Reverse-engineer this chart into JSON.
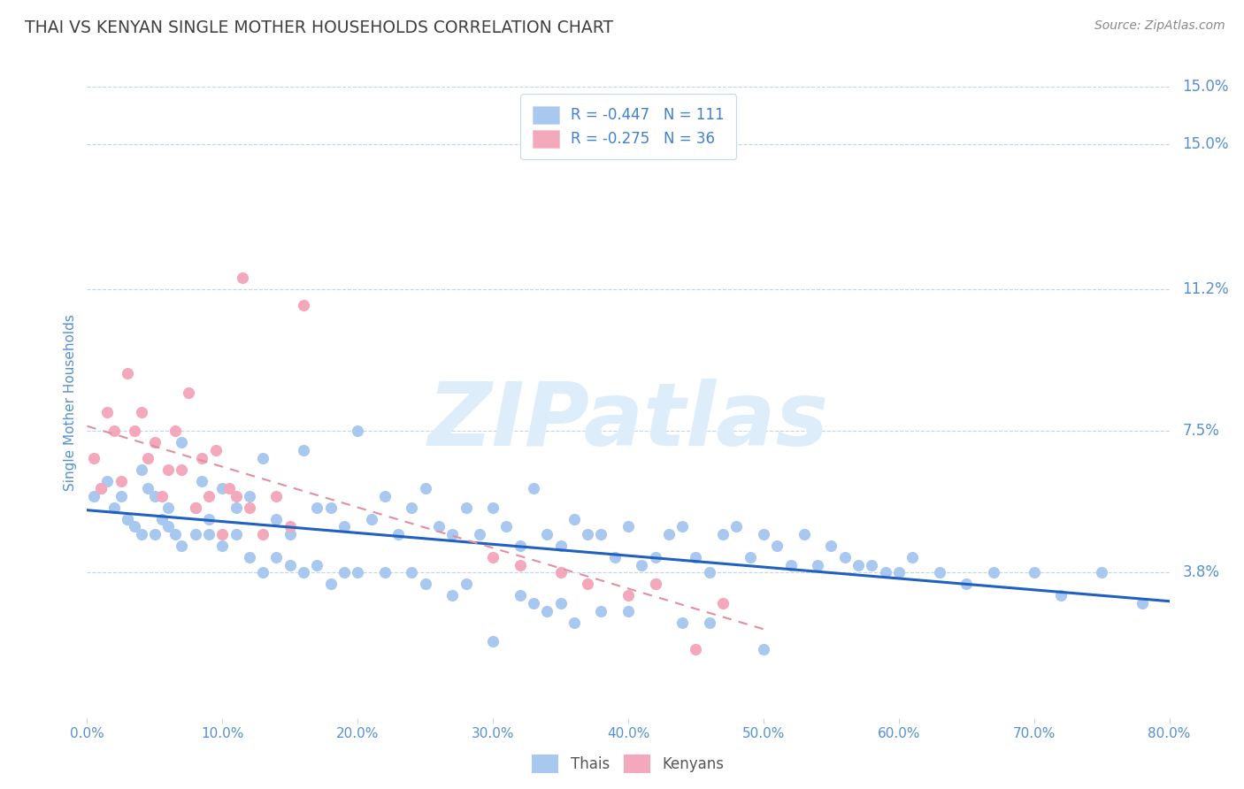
{
  "title": "THAI VS KENYAN SINGLE MOTHER HOUSEHOLDS CORRELATION CHART",
  "source_text": "Source: ZipAtlas.com",
  "ylabel": "Single Mother Households",
  "xlim": [
    0.0,
    0.8
  ],
  "ylim": [
    0.0,
    0.165
  ],
  "xticks": [
    0.0,
    0.1,
    0.2,
    0.3,
    0.4,
    0.5,
    0.6,
    0.7,
    0.8
  ],
  "xtick_labels": [
    "0.0%",
    "10.0%",
    "20.0%",
    "30.0%",
    "40.0%",
    "50.0%",
    "60.0%",
    "70.0%",
    "80.0%"
  ],
  "ytick_vals": [
    0.038,
    0.075,
    0.112,
    0.15
  ],
  "ytick_labels": [
    "3.8%",
    "7.5%",
    "11.2%",
    "15.0%"
  ],
  "thai_color": "#a8c8f0",
  "kenyan_color": "#f4a8bc",
  "trend_thai_color": "#2060c0",
  "trend_kenyan_color": "#e090a0",
  "legend_text_color": "#4080d0",
  "title_color": "#404040",
  "source_color": "#888888",
  "axis_label_color": "#5590d0",
  "tick_color": "#5590d0",
  "grid_color": "#c0d4ea",
  "watermark_color": "#ddeefa",
  "r_thai": -0.447,
  "n_thai": 111,
  "r_kenyan": -0.275,
  "n_kenyan": 36,
  "thai_x": [
    0.005,
    0.01,
    0.015,
    0.02,
    0.025,
    0.03,
    0.035,
    0.04,
    0.045,
    0.05,
    0.055,
    0.06,
    0.065,
    0.07,
    0.08,
    0.085,
    0.09,
    0.1,
    0.11,
    0.12,
    0.13,
    0.14,
    0.15,
    0.16,
    0.17,
    0.18,
    0.19,
    0.2,
    0.21,
    0.22,
    0.23,
    0.24,
    0.25,
    0.26,
    0.27,
    0.28,
    0.29,
    0.3,
    0.31,
    0.32,
    0.33,
    0.34,
    0.35,
    0.36,
    0.37,
    0.38,
    0.39,
    0.4,
    0.41,
    0.42,
    0.43,
    0.44,
    0.45,
    0.46,
    0.47,
    0.48,
    0.49,
    0.5,
    0.51,
    0.52,
    0.53,
    0.54,
    0.55,
    0.56,
    0.57,
    0.58,
    0.59,
    0.6,
    0.61,
    0.63,
    0.65,
    0.67,
    0.7,
    0.72,
    0.75,
    0.78,
    0.03,
    0.04,
    0.05,
    0.06,
    0.07,
    0.08,
    0.09,
    0.1,
    0.11,
    0.12,
    0.13,
    0.14,
    0.15,
    0.16,
    0.17,
    0.18,
    0.19,
    0.2,
    0.22,
    0.24,
    0.25,
    0.27,
    0.28,
    0.3,
    0.32,
    0.33,
    0.34,
    0.35,
    0.36,
    0.38,
    0.4,
    0.42,
    0.44,
    0.46,
    0.5
  ],
  "thai_y": [
    0.058,
    0.06,
    0.062,
    0.055,
    0.058,
    0.052,
    0.05,
    0.065,
    0.06,
    0.058,
    0.052,
    0.055,
    0.048,
    0.072,
    0.055,
    0.062,
    0.052,
    0.06,
    0.055,
    0.058,
    0.068,
    0.052,
    0.048,
    0.07,
    0.055,
    0.055,
    0.05,
    0.075,
    0.052,
    0.058,
    0.048,
    0.055,
    0.06,
    0.05,
    0.048,
    0.055,
    0.048,
    0.055,
    0.05,
    0.045,
    0.06,
    0.048,
    0.045,
    0.052,
    0.048,
    0.048,
    0.042,
    0.05,
    0.04,
    0.042,
    0.048,
    0.05,
    0.042,
    0.038,
    0.048,
    0.05,
    0.042,
    0.048,
    0.045,
    0.04,
    0.048,
    0.04,
    0.045,
    0.042,
    0.04,
    0.04,
    0.038,
    0.038,
    0.042,
    0.038,
    0.035,
    0.038,
    0.038,
    0.032,
    0.038,
    0.03,
    0.052,
    0.048,
    0.048,
    0.05,
    0.045,
    0.048,
    0.048,
    0.045,
    0.048,
    0.042,
    0.038,
    0.042,
    0.04,
    0.038,
    0.04,
    0.035,
    0.038,
    0.038,
    0.038,
    0.038,
    0.035,
    0.032,
    0.035,
    0.02,
    0.032,
    0.03,
    0.028,
    0.03,
    0.025,
    0.028,
    0.028,
    0.035,
    0.025,
    0.025,
    0.018
  ],
  "kenyan_x": [
    0.005,
    0.01,
    0.015,
    0.02,
    0.025,
    0.03,
    0.035,
    0.04,
    0.045,
    0.05,
    0.055,
    0.06,
    0.065,
    0.07,
    0.075,
    0.08,
    0.085,
    0.09,
    0.095,
    0.1,
    0.105,
    0.11,
    0.115,
    0.12,
    0.13,
    0.14,
    0.15,
    0.16,
    0.3,
    0.32,
    0.35,
    0.37,
    0.4,
    0.42,
    0.45,
    0.47
  ],
  "kenyan_y": [
    0.068,
    0.06,
    0.08,
    0.075,
    0.062,
    0.09,
    0.075,
    0.08,
    0.068,
    0.072,
    0.058,
    0.065,
    0.075,
    0.065,
    0.085,
    0.055,
    0.068,
    0.058,
    0.07,
    0.048,
    0.06,
    0.058,
    0.115,
    0.055,
    0.048,
    0.058,
    0.05,
    0.108,
    0.042,
    0.04,
    0.038,
    0.035,
    0.032,
    0.035,
    0.018,
    0.03
  ]
}
